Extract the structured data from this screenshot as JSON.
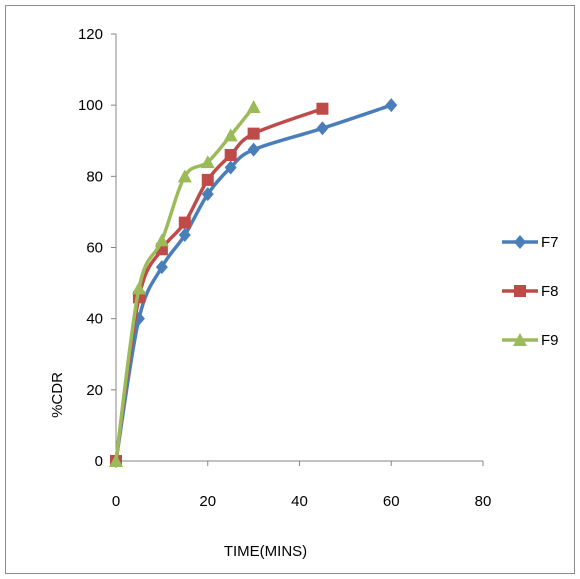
{
  "chart_data": {
    "type": "line",
    "title": "",
    "xlabel": "TIME(MINS)",
    "ylabel": "%CDR",
    "xlim": [
      0,
      80
    ],
    "ylim": [
      0,
      120
    ],
    "xticks": [
      0,
      20,
      40,
      60,
      80
    ],
    "yticks": [
      0,
      20,
      40,
      60,
      80,
      100,
      120
    ],
    "grid": false,
    "legend_position": "right",
    "series": [
      {
        "name": "F7",
        "marker": "diamond",
        "color": "#4a7ebb",
        "points": [
          [
            0,
            0
          ],
          [
            5,
            40
          ],
          [
            10,
            54.5
          ],
          [
            15,
            63.5
          ],
          [
            20,
            75
          ],
          [
            25,
            82.5
          ],
          [
            30,
            87.5
          ],
          [
            45,
            93.5
          ],
          [
            60,
            100
          ]
        ]
      },
      {
        "name": "F8",
        "marker": "square",
        "color": "#be4b48",
        "points": [
          [
            0,
            0
          ],
          [
            5,
            46
          ],
          [
            10,
            59.5
          ],
          [
            15,
            67
          ],
          [
            20,
            79
          ],
          [
            25,
            86
          ],
          [
            30,
            92
          ],
          [
            45,
            99
          ]
        ]
      },
      {
        "name": "F9",
        "marker": "triangle",
        "color": "#9bbb59",
        "points": [
          [
            0,
            0
          ],
          [
            5,
            48.5
          ],
          [
            10,
            62
          ],
          [
            15,
            80
          ],
          [
            20,
            84
          ],
          [
            25,
            91.5
          ],
          [
            30,
            99.5
          ]
        ]
      }
    ]
  }
}
